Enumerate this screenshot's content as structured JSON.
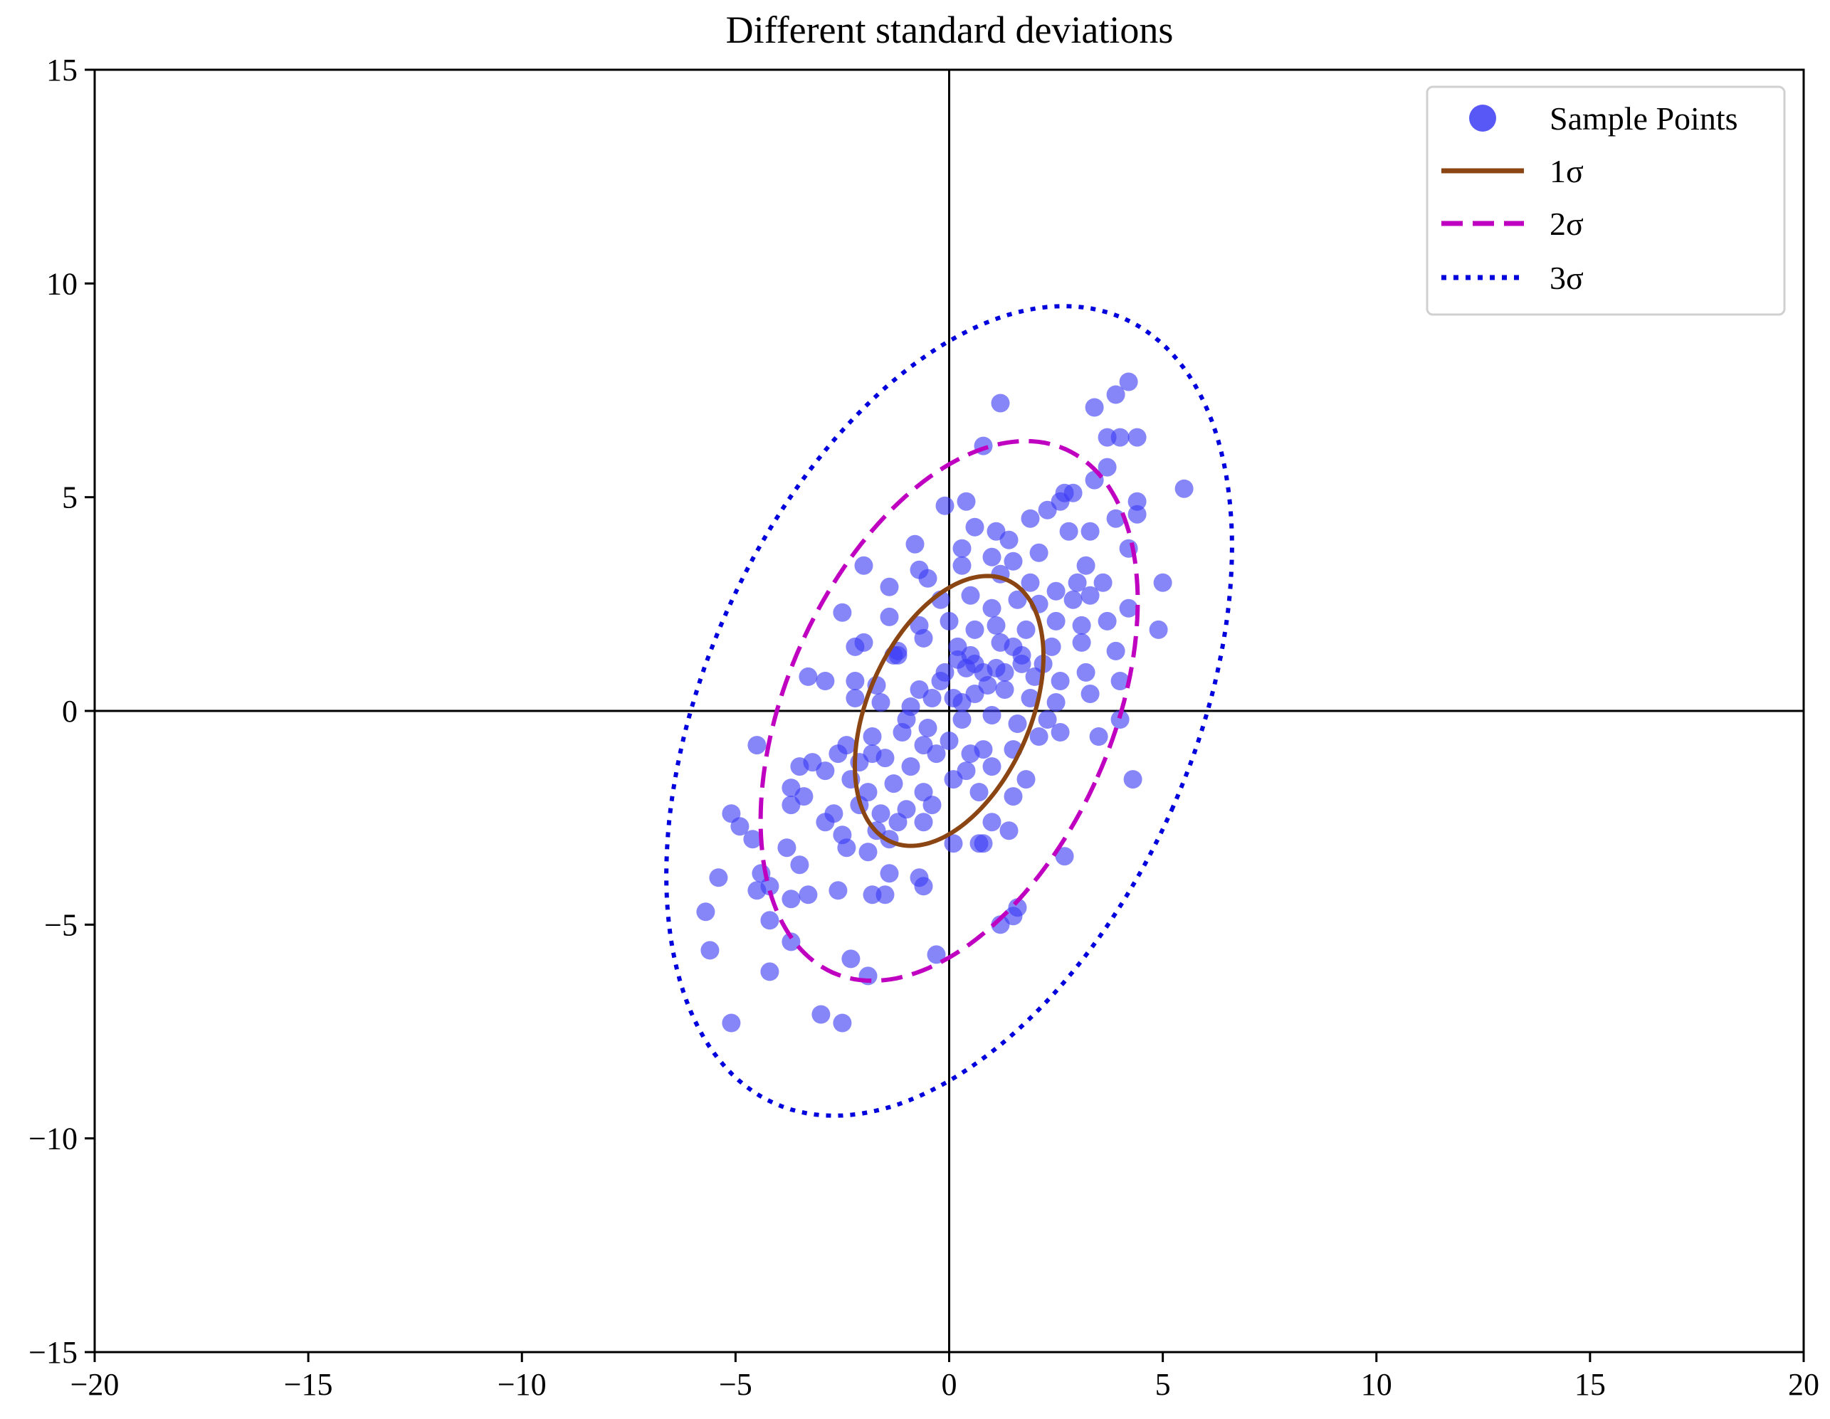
{
  "chart_data": {
    "type": "scatter",
    "title": "Different standard deviations",
    "xlabel": "",
    "ylabel": "",
    "xlim": [
      -20,
      20
    ],
    "ylim": [
      -15,
      15
    ],
    "x_ticks": [
      -20,
      -15,
      -10,
      -5,
      0,
      5,
      10,
      15,
      20
    ],
    "y_ticks": [
      -15,
      -10,
      -5,
      0,
      5,
      10,
      15
    ],
    "x_tick_labels": [
      "−20",
      "−15",
      "−10",
      "−5",
      "0",
      "5",
      "10",
      "15",
      "20"
    ],
    "y_tick_labels": [
      "−15",
      "−10",
      "−5",
      "0",
      "5",
      "10",
      "15"
    ],
    "grid": false,
    "axis_lines_at_zero": true,
    "legend": {
      "location": "top-right",
      "entries": [
        "Sample Points",
        "1σ",
        "2σ",
        "3σ"
      ]
    },
    "colors": {
      "points": "#3b3bf5",
      "sigma1": "#8b4513",
      "sigma2": "#c000c0",
      "sigma3": "#0000dd"
    },
    "ellipses": [
      {
        "name": "1σ",
        "center": [
          0,
          0
        ],
        "width": 3.8,
        "height": 6.7,
        "angle_deg": -24,
        "style": "solid"
      },
      {
        "name": "2σ",
        "center": [
          0,
          0
        ],
        "width": 7.6,
        "height": 13.4,
        "angle_deg": -24,
        "style": "dashed"
      },
      {
        "name": "3σ",
        "center": [
          0,
          0
        ],
        "width": 11.4,
        "height": 20.1,
        "angle_deg": -24,
        "style": "dotted"
      }
    ],
    "series": [
      {
        "name": "Sample Points",
        "points": [
          [
            4.2,
            7.7
          ],
          [
            3.9,
            7.4
          ],
          [
            1.2,
            7.2
          ],
          [
            3.4,
            7.1
          ],
          [
            0.8,
            6.2
          ],
          [
            3.7,
            6.4
          ],
          [
            4.0,
            6.4
          ],
          [
            4.4,
            6.4
          ],
          [
            3.7,
            5.7
          ],
          [
            3.4,
            5.4
          ],
          [
            5.5,
            5.2
          ],
          [
            4.4,
            4.9
          ],
          [
            4.4,
            4.6
          ],
          [
            3.9,
            4.5
          ],
          [
            0.4,
            4.9
          ],
          [
            -0.1,
            4.8
          ],
          [
            0.6,
            4.3
          ],
          [
            1.1,
            4.2
          ],
          [
            1.4,
            4.0
          ],
          [
            1.9,
            4.5
          ],
          [
            2.3,
            4.7
          ],
          [
            2.6,
            4.9
          ],
          [
            2.7,
            5.1
          ],
          [
            2.9,
            5.1
          ],
          [
            2.8,
            4.2
          ],
          [
            3.3,
            4.2
          ],
          [
            4.2,
            3.8
          ],
          [
            -0.8,
            3.9
          ],
          [
            0.3,
            3.8
          ],
          [
            1.0,
            3.6
          ],
          [
            1.5,
            3.5
          ],
          [
            2.1,
            3.7
          ],
          [
            3.2,
            3.4
          ],
          [
            -2.0,
            3.4
          ],
          [
            -0.7,
            3.3
          ],
          [
            -0.5,
            3.1
          ],
          [
            0.3,
            3.4
          ],
          [
            1.2,
            3.2
          ],
          [
            1.9,
            3.0
          ],
          [
            2.5,
            2.8
          ],
          [
            3.0,
            3.0
          ],
          [
            3.6,
            3.0
          ],
          [
            5.0,
            3.0
          ],
          [
            -1.4,
            2.9
          ],
          [
            -0.2,
            2.6
          ],
          [
            0.5,
            2.7
          ],
          [
            1.0,
            2.4
          ],
          [
            1.6,
            2.6
          ],
          [
            2.1,
            2.5
          ],
          [
            2.9,
            2.6
          ],
          [
            3.3,
            2.7
          ],
          [
            4.2,
            2.4
          ],
          [
            -2.5,
            2.3
          ],
          [
            -1.4,
            2.2
          ],
          [
            -0.7,
            2.0
          ],
          [
            0.0,
            2.1
          ],
          [
            0.6,
            1.9
          ],
          [
            1.1,
            2.0
          ],
          [
            1.8,
            1.9
          ],
          [
            2.5,
            2.1
          ],
          [
            3.1,
            2.0
          ],
          [
            3.7,
            2.1
          ],
          [
            4.9,
            1.9
          ],
          [
            -2.2,
            1.5
          ],
          [
            -2.0,
            1.6
          ],
          [
            -1.2,
            1.4
          ],
          [
            -0.6,
            1.7
          ],
          [
            0.2,
            1.5
          ],
          [
            0.5,
            1.3
          ],
          [
            1.2,
            1.6
          ],
          [
            1.7,
            1.3
          ],
          [
            2.4,
            1.5
          ],
          [
            3.1,
            1.6
          ],
          [
            3.9,
            1.4
          ],
          [
            -1.3,
            1.3
          ],
          [
            -1.2,
            1.3
          ],
          [
            -0.1,
            0.9
          ],
          [
            0.4,
            1.0
          ],
          [
            0.6,
            1.1
          ],
          [
            1.3,
            0.9
          ],
          [
            2.0,
            0.8
          ],
          [
            2.6,
            0.7
          ],
          [
            3.2,
            0.9
          ],
          [
            4.0,
            0.7
          ],
          [
            -3.3,
            0.8
          ],
          [
            -2.9,
            0.7
          ],
          [
            -2.2,
            0.7
          ],
          [
            -1.7,
            0.6
          ],
          [
            -0.7,
            0.5
          ],
          [
            0.1,
            0.3
          ],
          [
            0.6,
            0.4
          ],
          [
            1.3,
            0.5
          ],
          [
            1.9,
            0.3
          ],
          [
            2.5,
            0.2
          ],
          [
            3.3,
            0.4
          ],
          [
            -2.2,
            0.3
          ],
          [
            -1.6,
            0.2
          ],
          [
            -0.9,
            0.1
          ],
          [
            -0.4,
            0.3
          ],
          [
            0.3,
            -0.2
          ],
          [
            1.0,
            -0.1
          ],
          [
            1.6,
            -0.3
          ],
          [
            2.3,
            -0.2
          ],
          [
            2.6,
            -0.5
          ],
          [
            3.5,
            -0.6
          ],
          [
            4.0,
            -0.2
          ],
          [
            -4.5,
            -0.8
          ],
          [
            -2.4,
            -0.8
          ],
          [
            -1.8,
            -0.6
          ],
          [
            -1.1,
            -0.5
          ],
          [
            -0.6,
            -0.8
          ],
          [
            0.0,
            -0.7
          ],
          [
            0.8,
            -0.9
          ],
          [
            1.5,
            -0.9
          ],
          [
            2.1,
            -0.6
          ],
          [
            -3.5,
            -1.3
          ],
          [
            -3.2,
            -1.2
          ],
          [
            -2.6,
            -1.0
          ],
          [
            -2.1,
            -1.2
          ],
          [
            -1.5,
            -1.1
          ],
          [
            -0.9,
            -1.3
          ],
          [
            -0.3,
            -1.0
          ],
          [
            0.4,
            -1.4
          ],
          [
            1.0,
            -1.3
          ],
          [
            1.8,
            -1.6
          ],
          [
            4.3,
            -1.6
          ],
          [
            -3.7,
            -1.8
          ],
          [
            -2.9,
            -1.4
          ],
          [
            -2.3,
            -1.6
          ],
          [
            -1.9,
            -1.9
          ],
          [
            -1.3,
            -1.7
          ],
          [
            -0.6,
            -1.9
          ],
          [
            0.1,
            -1.6
          ],
          [
            0.7,
            -1.9
          ],
          [
            1.5,
            -2.0
          ],
          [
            -3.7,
            -2.2
          ],
          [
            -3.4,
            -2.0
          ],
          [
            -2.7,
            -2.4
          ],
          [
            -2.1,
            -2.2
          ],
          [
            -1.6,
            -2.4
          ],
          [
            -1.0,
            -2.3
          ],
          [
            -0.4,
            -2.2
          ],
          [
            -5.1,
            -2.4
          ],
          [
            -4.9,
            -2.7
          ],
          [
            -4.6,
            -3.0
          ],
          [
            -2.9,
            -2.6
          ],
          [
            -2.5,
            -2.9
          ],
          [
            -1.7,
            -2.8
          ],
          [
            -1.2,
            -2.6
          ],
          [
            -0.6,
            -2.6
          ],
          [
            1.0,
            -2.6
          ],
          [
            1.4,
            -2.8
          ],
          [
            2.7,
            -3.4
          ],
          [
            -3.8,
            -3.2
          ],
          [
            -3.5,
            -3.6
          ],
          [
            -2.4,
            -3.2
          ],
          [
            -1.9,
            -3.3
          ],
          [
            -1.4,
            -3.0
          ],
          [
            0.1,
            -3.1
          ],
          [
            0.7,
            -3.1
          ],
          [
            0.8,
            -3.1
          ],
          [
            -5.4,
            -3.9
          ],
          [
            -4.4,
            -3.8
          ],
          [
            -4.5,
            -4.2
          ],
          [
            -4.2,
            -4.1
          ],
          [
            -3.7,
            -4.4
          ],
          [
            -3.3,
            -4.3
          ],
          [
            -2.6,
            -4.2
          ],
          [
            -1.8,
            -4.3
          ],
          [
            -1.5,
            -4.3
          ],
          [
            -1.4,
            -3.8
          ],
          [
            -0.7,
            -3.9
          ],
          [
            -0.6,
            -4.1
          ],
          [
            1.6,
            -4.6
          ],
          [
            -5.7,
            -4.7
          ],
          [
            -4.2,
            -4.9
          ],
          [
            1.5,
            -4.8
          ],
          [
            1.2,
            -5.0
          ],
          [
            -3.7,
            -5.4
          ],
          [
            -5.6,
            -5.6
          ],
          [
            -2.3,
            -5.8
          ],
          [
            -0.3,
            -5.7
          ],
          [
            -1.9,
            -6.2
          ],
          [
            -4.2,
            -6.1
          ],
          [
            -3.0,
            -7.1
          ],
          [
            -5.1,
            -7.3
          ],
          [
            -2.5,
            -7.3
          ],
          [
            0.5,
            -1.0
          ],
          [
            -0.2,
            0.7
          ],
          [
            0.8,
            0.9
          ],
          [
            1.5,
            1.5
          ],
          [
            -1.0,
            -0.2
          ],
          [
            0.3,
            0.2
          ],
          [
            1.1,
            1.0
          ],
          [
            -0.5,
            -0.4
          ],
          [
            0.9,
            0.6
          ],
          [
            1.7,
            1.1
          ],
          [
            -1.8,
            -1.0
          ],
          [
            0.2,
            1.2
          ],
          [
            2.2,
            1.1
          ]
        ]
      }
    ]
  }
}
